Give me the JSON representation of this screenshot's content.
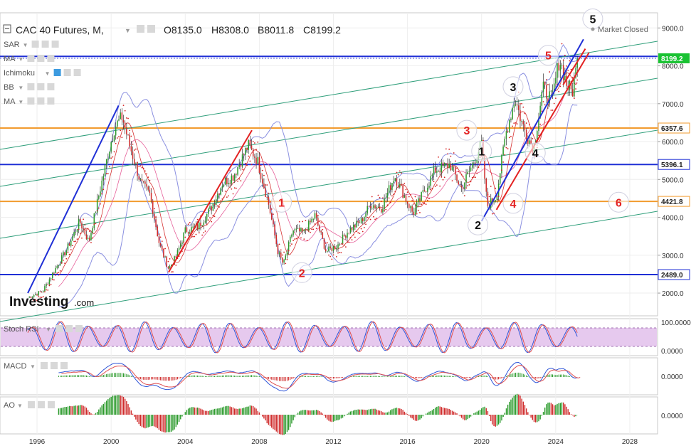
{
  "header": {
    "title": "CAC 40 Futures, M,",
    "open": "O8135.0",
    "high": "H8308.0",
    "low": "B8011.8",
    "close": "C8199.2",
    "market_status": "Market Closed"
  },
  "indicators": [
    "SAR",
    "MA",
    "Ichimoku",
    "BB",
    "MA"
  ],
  "sub_panes": {
    "stoch_rsi": {
      "label": "Stoch RSI",
      "ticks": [
        "100.0000",
        "0.0000"
      ]
    },
    "macd": {
      "label": "MACD",
      "ticks": [
        "0.0000"
      ]
    },
    "ao": {
      "label": "AO",
      "ticks": [
        "0.0000"
      ]
    }
  },
  "logo": {
    "main": "Investing",
    "suffix": ".com"
  },
  "colors": {
    "blue_line": "#1f2fd6",
    "orange_line": "#f29b2e",
    "channel_green": "#2e9e7a",
    "red_line": "#e32222",
    "bull": "#2b9a2b",
    "bear": "#cf2a2a",
    "bb_line": "#8a8fe0",
    "stoch_band": "#e6c9ee",
    "wave_black": "#111111",
    "wave_red": "#e32222"
  },
  "chart_data": {
    "type": "candlestick",
    "x_axis": {
      "ticks": [
        "1996",
        "2000",
        "2004",
        "2008",
        "2012",
        "2016",
        "2020",
        "2024",
        "2028"
      ],
      "range": [
        1994.0,
        2029.5
      ]
    },
    "y_axis": {
      "ticks": [
        "2000.0",
        "3000.0",
        "4000.0",
        "5000.0",
        "6000.0",
        "7000.0",
        "8000.0",
        "9000.0"
      ],
      "range": [
        1400,
        9400
      ]
    },
    "current_price": {
      "value": 8199.2,
      "label": "8199.2"
    },
    "horizontal_levels": [
      {
        "value": 6357.6,
        "label": "6357.6",
        "color": "orange"
      },
      {
        "value": 5396.1,
        "label": "5396.1",
        "color": "blue"
      },
      {
        "value": 4421.8,
        "label": "4421.8",
        "color": "orange"
      },
      {
        "value": 2489.0,
        "label": "2489.0",
        "color": "blue"
      },
      {
        "value": 8250,
        "label": "",
        "color": "blue"
      }
    ],
    "price_path": [
      [
        1995.5,
        1880
      ],
      [
        1996.3,
        2050
      ],
      [
        1997.0,
        2650
      ],
      [
        1997.6,
        3150
      ],
      [
        1998.3,
        3900
      ],
      [
        1998.8,
        3350
      ],
      [
        1999.3,
        4500
      ],
      [
        1999.8,
        5600
      ],
      [
        2000.2,
        6400
      ],
      [
        2000.6,
        6650
      ],
      [
        2001.0,
        5900
      ],
      [
        2001.6,
        4900
      ],
      [
        2002.1,
        4600
      ],
      [
        2002.6,
        3300
      ],
      [
        2003.1,
        2650
      ],
      [
        2003.5,
        2950
      ],
      [
        2004.0,
        3650
      ],
      [
        2004.7,
        3750
      ],
      [
        2005.4,
        4250
      ],
      [
        2006.0,
        4900
      ],
      [
        2006.6,
        5100
      ],
      [
        2007.4,
        5900
      ],
      [
        2007.9,
        5500
      ],
      [
        2008.5,
        4350
      ],
      [
        2009.0,
        3100
      ],
      [
        2009.3,
        2750
      ],
      [
        2009.8,
        3650
      ],
      [
        2010.4,
        3600
      ],
      [
        2011.0,
        4050
      ],
      [
        2011.6,
        3100
      ],
      [
        2012.2,
        3250
      ],
      [
        2012.8,
        3650
      ],
      [
        2013.5,
        3900
      ],
      [
        2014.0,
        4350
      ],
      [
        2014.6,
        4250
      ],
      [
        2015.3,
        5100
      ],
      [
        2015.8,
        4600
      ],
      [
        2016.3,
        4100
      ],
      [
        2016.9,
        4700
      ],
      [
        2017.5,
        5250
      ],
      [
        2018.3,
        5400
      ],
      [
        2018.9,
        4750
      ],
      [
        2019.6,
        5500
      ],
      [
        2020.0,
        5950
      ],
      [
        2020.3,
        4300
      ],
      [
        2020.8,
        4550
      ],
      [
        2021.3,
        6200
      ],
      [
        2021.8,
        7150
      ],
      [
        2022.2,
        6450
      ],
      [
        2022.8,
        5800
      ],
      [
        2023.3,
        7400
      ],
      [
        2023.8,
        7100
      ],
      [
        2024.2,
        8200
      ],
      [
        2024.6,
        7500
      ],
      [
        2024.9,
        7300
      ],
      [
        2025.2,
        8199
      ]
    ],
    "wave_labels": [
      {
        "text": "1",
        "x": 2020.0,
        "y": 5750,
        "color": "black"
      },
      {
        "text": "2",
        "x": 2019.8,
        "y": 3800,
        "color": "black"
      },
      {
        "text": "3",
        "x": 2021.7,
        "y": 7450,
        "color": "black"
      },
      {
        "text": "4",
        "x": 2022.9,
        "y": 5700,
        "color": "black"
      },
      {
        "text": "5",
        "x": 2026.0,
        "y": 9240,
        "color": "black"
      },
      {
        "text": "1",
        "x": 2009.2,
        "y": 4400,
        "color": "red"
      },
      {
        "text": "2",
        "x": 2010.3,
        "y": 2540,
        "color": "red"
      },
      {
        "text": "3",
        "x": 2019.2,
        "y": 6300,
        "color": "red"
      },
      {
        "text": "4",
        "x": 2021.7,
        "y": 4370,
        "color": "red"
      },
      {
        "text": "5",
        "x": 2023.6,
        "y": 8280,
        "color": "red"
      },
      {
        "text": "6",
        "x": 2027.4,
        "y": 4400,
        "color": "red"
      }
    ]
  }
}
